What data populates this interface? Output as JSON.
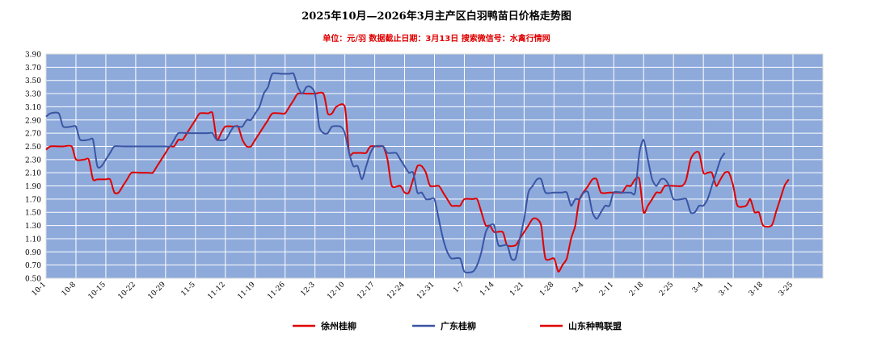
{
  "chart_data": {
    "type": "line",
    "title": "2025年10月—2026年3月主产区白羽鸭苗日价格走势图",
    "subtitle": "单位：元/羽    数据截止日期：3月13日    搜索微信号：水禽行情网",
    "xlabel": "",
    "ylabel": "",
    "ylim": [
      0.5,
      3.9
    ],
    "yticks": [
      "0.50",
      "0.70",
      "0.90",
      "1.10",
      "1.30",
      "1.50",
      "1.70",
      "1.90",
      "2.10",
      "2.30",
      "2.50",
      "2.70",
      "2.90",
      "3.10",
      "3.30",
      "3.50",
      "3.70",
      "3.90"
    ],
    "xticks": [
      "10-1",
      "10-8",
      "10-15",
      "10-22",
      "10-29",
      "11-5",
      "11-12",
      "11-19",
      "11-26",
      "12-3",
      "12-10",
      "12-17",
      "12-24",
      "12-31",
      "1-7",
      "1-14",
      "1-21",
      "1-28",
      "2-4",
      "2-11",
      "2-18",
      "2-25",
      "3-4",
      "3-11",
      "3-18",
      "3-25"
    ],
    "x_days_total": 182,
    "grid": true,
    "background_color": "#8eaadb",
    "grid_color": "#ffffff",
    "legend_position": "bottom",
    "series": [
      {
        "name": "徐州桂柳",
        "color": "#e00000",
        "values": [
          [
            0,
            2.45
          ],
          [
            1,
            2.5
          ],
          [
            3,
            2.5
          ],
          [
            4,
            2.5
          ],
          [
            6,
            2.5
          ],
          [
            7,
            2.3
          ],
          [
            9,
            2.3
          ],
          [
            10,
            2.3
          ],
          [
            11,
            2.0
          ],
          [
            12,
            2.0
          ],
          [
            14,
            2.0
          ],
          [
            15,
            2.0
          ],
          [
            16,
            1.8
          ],
          [
            17,
            1.8
          ],
          [
            18,
            1.9
          ],
          [
            19,
            2.0
          ],
          [
            20,
            2.1
          ],
          [
            22,
            2.1
          ],
          [
            24,
            2.1
          ],
          [
            25,
            2.1
          ],
          [
            26,
            2.2
          ],
          [
            27,
            2.3
          ],
          [
            28,
            2.4
          ],
          [
            29,
            2.5
          ],
          [
            30,
            2.5
          ],
          [
            31,
            2.6
          ],
          [
            32,
            2.6
          ],
          [
            33,
            2.7
          ],
          [
            34,
            2.8
          ],
          [
            35,
            2.9
          ],
          [
            36,
            3.0
          ],
          [
            38,
            3.0
          ],
          [
            39,
            3.0
          ],
          [
            40,
            2.6
          ],
          [
            41,
            2.7
          ],
          [
            42,
            2.8
          ],
          [
            44,
            2.8
          ],
          [
            45,
            2.8
          ],
          [
            46,
            2.6
          ],
          [
            47,
            2.5
          ],
          [
            48,
            2.5
          ],
          [
            49,
            2.6
          ],
          [
            50,
            2.7
          ],
          [
            51,
            2.8
          ],
          [
            52,
            2.9
          ],
          [
            53,
            3.0
          ],
          [
            55,
            3.0
          ],
          [
            56,
            3.0
          ],
          [
            57,
            3.1
          ],
          [
            58,
            3.2
          ],
          [
            59,
            3.3
          ],
          [
            61,
            3.3
          ],
          [
            63,
            3.3
          ],
          [
            65,
            3.3
          ],
          [
            66,
            3.0
          ],
          [
            67,
            3.0
          ],
          [
            68,
            3.1
          ],
          [
            70,
            3.1
          ],
          [
            71,
            2.4
          ],
          [
            72,
            2.4
          ],
          [
            74,
            2.4
          ],
          [
            75,
            2.4
          ],
          [
            76,
            2.5
          ],
          [
            78,
            2.5
          ],
          [
            79,
            2.5
          ],
          [
            80,
            2.3
          ],
          [
            81,
            1.9
          ],
          [
            83,
            1.9
          ],
          [
            84,
            1.8
          ],
          [
            85,
            1.8
          ],
          [
            86,
            2.0
          ],
          [
            87,
            2.2
          ],
          [
            88,
            2.2
          ],
          [
            89,
            2.1
          ],
          [
            90,
            1.9
          ],
          [
            92,
            1.9
          ],
          [
            93,
            1.8
          ],
          [
            94,
            1.7
          ],
          [
            95,
            1.6
          ],
          [
            96,
            1.6
          ],
          [
            97,
            1.6
          ],
          [
            98,
            1.7
          ],
          [
            100,
            1.7
          ],
          [
            101,
            1.7
          ],
          [
            102,
            1.5
          ],
          [
            103,
            1.3
          ],
          [
            104,
            1.3
          ],
          [
            105,
            1.2
          ],
          [
            107,
            1.2
          ],
          [
            108,
            1.0
          ],
          [
            110,
            1.0
          ],
          [
            111,
            1.1
          ],
          [
            113,
            1.3
          ],
          [
            114,
            1.4
          ],
          [
            115,
            1.4
          ],
          [
            116,
            1.3
          ],
          [
            117,
            0.8
          ],
          [
            119,
            0.8
          ],
          [
            120,
            0.6
          ],
          [
            121,
            0.7
          ],
          [
            122,
            0.8
          ],
          [
            123,
            1.1
          ],
          [
            124,
            1.3
          ],
          [
            125,
            1.7
          ],
          [
            127,
            1.9
          ],
          [
            128,
            2.0
          ],
          [
            129,
            2.0
          ],
          [
            130,
            1.8
          ],
          [
            132,
            1.8
          ],
          [
            134,
            1.8
          ],
          [
            135,
            1.8
          ],
          [
            136,
            1.9
          ],
          [
            137,
            1.9
          ],
          [
            138,
            2.0
          ],
          [
            139,
            2.0
          ],
          [
            140,
            1.5
          ],
          [
            141,
            1.6
          ],
          [
            142,
            1.7
          ],
          [
            143,
            1.8
          ],
          [
            144,
            1.8
          ],
          [
            145,
            1.9
          ],
          [
            147,
            1.9
          ],
          [
            149,
            1.9
          ],
          [
            150,
            2.0
          ],
          [
            151,
            2.3
          ],
          [
            152,
            2.4
          ],
          [
            153,
            2.4
          ],
          [
            154,
            2.1
          ],
          [
            155,
            2.1
          ],
          [
            156,
            2.1
          ],
          [
            157,
            1.9
          ],
          [
            158,
            2.0
          ],
          [
            159,
            2.1
          ],
          [
            160,
            2.1
          ],
          [
            161,
            1.9
          ],
          [
            162,
            1.6
          ],
          [
            164,
            1.6
          ],
          [
            165,
            1.7
          ],
          [
            166,
            1.5
          ],
          [
            167,
            1.5
          ],
          [
            168,
            1.3
          ],
          [
            170,
            1.3
          ],
          [
            171,
            1.5
          ],
          [
            172,
            1.7
          ],
          [
            173,
            1.9
          ],
          [
            174,
            2.0
          ]
        ]
      },
      {
        "name": "广东桂柳",
        "color": "#3a55a4",
        "values": [
          [
            0,
            2.95
          ],
          [
            1,
            3.0
          ],
          [
            3,
            3.0
          ],
          [
            4,
            2.8
          ],
          [
            6,
            2.8
          ],
          [
            7,
            2.8
          ],
          [
            8,
            2.6
          ],
          [
            10,
            2.6
          ],
          [
            11,
            2.6
          ],
          [
            12,
            2.2
          ],
          [
            13,
            2.2
          ],
          [
            14,
            2.3
          ],
          [
            15,
            2.4
          ],
          [
            16,
            2.5
          ],
          [
            18,
            2.5
          ],
          [
            20,
            2.5
          ],
          [
            22,
            2.5
          ],
          [
            24,
            2.5
          ],
          [
            26,
            2.5
          ],
          [
            28,
            2.5
          ],
          [
            29,
            2.5
          ],
          [
            30,
            2.6
          ],
          [
            31,
            2.7
          ],
          [
            33,
            2.7
          ],
          [
            35,
            2.7
          ],
          [
            37,
            2.7
          ],
          [
            38,
            2.7
          ],
          [
            39,
            2.7
          ],
          [
            40,
            2.6
          ],
          [
            42,
            2.6
          ],
          [
            43,
            2.7
          ],
          [
            44,
            2.8
          ],
          [
            45,
            2.8
          ],
          [
            46,
            2.8
          ],
          [
            47,
            2.9
          ],
          [
            48,
            2.9
          ],
          [
            49,
            3.0
          ],
          [
            50,
            3.1
          ],
          [
            51,
            3.3
          ],
          [
            52,
            3.4
          ],
          [
            53,
            3.6
          ],
          [
            55,
            3.6
          ],
          [
            57,
            3.6
          ],
          [
            58,
            3.6
          ],
          [
            59,
            3.4
          ],
          [
            60,
            3.3
          ],
          [
            61,
            3.4
          ],
          [
            62,
            3.4
          ],
          [
            63,
            3.3
          ],
          [
            64,
            2.8
          ],
          [
            65,
            2.7
          ],
          [
            66,
            2.7
          ],
          [
            67,
            2.8
          ],
          [
            69,
            2.8
          ],
          [
            70,
            2.7
          ],
          [
            71,
            2.4
          ],
          [
            72,
            2.2
          ],
          [
            73,
            2.2
          ],
          [
            74,
            2.0
          ],
          [
            75,
            2.2
          ],
          [
            76,
            2.4
          ],
          [
            77,
            2.5
          ],
          [
            79,
            2.5
          ],
          [
            80,
            2.4
          ],
          [
            82,
            2.4
          ],
          [
            83,
            2.3
          ],
          [
            84,
            2.2
          ],
          [
            85,
            2.1
          ],
          [
            86,
            2.1
          ],
          [
            87,
            1.8
          ],
          [
            88,
            1.8
          ],
          [
            89,
            1.7
          ],
          [
            90,
            1.7
          ],
          [
            91,
            1.7
          ],
          [
            92,
            1.4
          ],
          [
            93,
            1.1
          ],
          [
            94,
            0.9
          ],
          [
            95,
            0.8
          ],
          [
            97,
            0.8
          ],
          [
            98,
            0.6
          ],
          [
            100,
            0.6
          ],
          [
            101,
            0.7
          ],
          [
            102,
            0.9
          ],
          [
            103,
            1.2
          ],
          [
            104,
            1.3
          ],
          [
            105,
            1.3
          ],
          [
            106,
            1.0
          ],
          [
            108,
            1.0
          ],
          [
            109,
            0.8
          ],
          [
            110,
            0.8
          ],
          [
            111,
            1.1
          ],
          [
            112,
            1.4
          ],
          [
            113,
            1.8
          ],
          [
            114,
            1.9
          ],
          [
            115,
            2.0
          ],
          [
            116,
            2.0
          ],
          [
            117,
            1.8
          ],
          [
            119,
            1.8
          ],
          [
            121,
            1.8
          ],
          [
            122,
            1.8
          ],
          [
            123,
            1.6
          ],
          [
            124,
            1.7
          ],
          [
            125,
            1.7
          ],
          [
            126,
            1.8
          ],
          [
            127,
            1.8
          ],
          [
            128,
            1.5
          ],
          [
            129,
            1.4
          ],
          [
            130,
            1.5
          ],
          [
            131,
            1.6
          ],
          [
            132,
            1.6
          ],
          [
            133,
            1.8
          ],
          [
            135,
            1.8
          ],
          [
            137,
            1.8
          ],
          [
            138,
            1.8
          ],
          [
            139,
            2.4
          ],
          [
            140,
            2.6
          ],
          [
            141,
            2.3
          ],
          [
            142,
            2.0
          ],
          [
            143,
            1.9
          ],
          [
            144,
            2.0
          ],
          [
            145,
            2.0
          ],
          [
            146,
            1.9
          ],
          [
            147,
            1.7
          ],
          [
            149,
            1.7
          ],
          [
            150,
            1.7
          ],
          [
            151,
            1.5
          ],
          [
            152,
            1.5
          ],
          [
            153,
            1.6
          ],
          [
            154,
            1.6
          ],
          [
            155,
            1.7
          ],
          [
            156,
            1.9
          ],
          [
            157,
            2.1
          ],
          [
            158,
            2.3
          ],
          [
            159,
            2.4
          ]
        ]
      },
      {
        "name": "山东种鸭联盟",
        "color": "#e00000",
        "values": []
      }
    ]
  }
}
